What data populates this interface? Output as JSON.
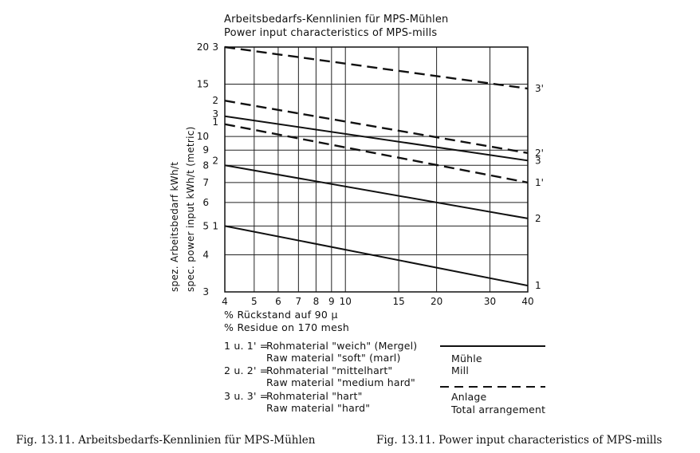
{
  "titles": {
    "de": "Arbeitsbedarfs-Kennlinien für MPS-Mühlen",
    "en": "Power input characteristics of MPS-mills"
  },
  "chart_data": {
    "type": "line",
    "scale": {
      "x": "log",
      "y": "log"
    },
    "xlim": [
      4,
      40
    ],
    "ylim": [
      3,
      20
    ],
    "grid": true,
    "x_ticks": [
      4,
      5,
      6,
      7,
      8,
      9,
      10,
      15,
      20,
      30,
      40
    ],
    "x_tick_labels": [
      "4",
      "5",
      "6",
      "7",
      "8",
      "9",
      "10",
      "15",
      "20",
      "30",
      "40"
    ],
    "y_ticks": [
      3,
      4,
      5,
      6,
      7,
      8,
      9,
      10,
      15,
      20
    ],
    "y_tick_labels": [
      "3",
      "4",
      "5",
      "6",
      "7",
      "8",
      "9",
      "10",
      "15",
      "20"
    ],
    "xlabel_de": "% Rückstand auf 90 µ",
    "xlabel_en": "% Residue on 170 mesh",
    "ylabel_de": "spez. Arbeitsbedarf kWh/t",
    "ylabel_en": "spec. power input kWh/t (metric)",
    "series": [
      {
        "label": "1",
        "style": "solid",
        "x": [
          4,
          40
        ],
        "y": [
          5.0,
          3.15
        ]
      },
      {
        "label": "2",
        "style": "solid",
        "x": [
          4,
          40
        ],
        "y": [
          8.0,
          5.3
        ]
      },
      {
        "label": "3",
        "style": "solid",
        "x": [
          4,
          40
        ],
        "y": [
          11.7,
          8.3
        ]
      },
      {
        "label": "1'",
        "style": "dashed",
        "x": [
          4,
          40
        ],
        "y": [
          11.0,
          7.0
        ]
      },
      {
        "label": "2'",
        "style": "dashed",
        "x": [
          4,
          40
        ],
        "y": [
          13.2,
          8.8
        ]
      },
      {
        "label": "3'",
        "style": "dashed",
        "x": [
          4,
          40
        ],
        "y": [
          20.0,
          14.5
        ]
      }
    ],
    "left_labels": [
      {
        "text": "3",
        "y": 20.0
      },
      {
        "text": "2",
        "y": 13.2
      },
      {
        "text": "3",
        "y": 11.9
      },
      {
        "text": "1",
        "y": 11.2
      },
      {
        "text": "2",
        "y": 8.3
      },
      {
        "text": "1",
        "y": 5.0
      }
    ],
    "right_labels": [
      {
        "text": "3'",
        "y": 14.5
      },
      {
        "text": "2'",
        "y": 8.8
      },
      {
        "text": "3",
        "y": 8.3
      },
      {
        "text": "1'",
        "y": 7.0
      },
      {
        "text": "2",
        "y": 5.3
      },
      {
        "text": "1",
        "y": 3.15
      }
    ]
  },
  "legend": {
    "row1": {
      "code": "1 u. 1' =",
      "de": "Rohmaterial  \"weich\" (Mergel)",
      "en": "Raw  material  \"soft\" (marl)"
    },
    "row2": {
      "code": "2 u. 2' =",
      "de": "Rohmaterial  \"mittelhart\"",
      "en": "Raw  material \"medium hard\""
    },
    "row3": {
      "code": "3 u. 3' =",
      "de": "Rohmaterial  \"hart\"",
      "en": "Raw  material  \"hard\""
    },
    "solid_de": "Mühle",
    "solid_en": "Mill",
    "dashed_de": "Anlage",
    "dashed_en": "Total arrangement"
  },
  "captions": {
    "de": "Fig. 13.11.  Arbeitsbedarfs-Kennlinien für MPS-Mühlen",
    "en": "Fig. 13.11.  Power input characteristics of MPS-mills"
  }
}
